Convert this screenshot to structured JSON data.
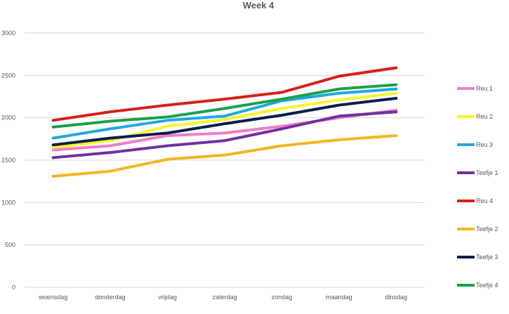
{
  "chart_data": {
    "type": "line",
    "title": "Week 4",
    "xlabel": "",
    "ylabel": "",
    "categories": [
      "woensdag",
      "donderdag",
      "vrijdag",
      "zaterdag",
      "zondag",
      "maandag",
      "dinsdag"
    ],
    "yticks": [
      "0",
      "500",
      "1000",
      "1500",
      "2000",
      "2500",
      "3000"
    ],
    "ylim": [
      0,
      3000
    ],
    "grid": true,
    "legend_position": "right",
    "series": [
      {
        "name": "Reu 1",
        "color": "#ee7ec8",
        "values": [
          1620,
          1670,
          1790,
          1820,
          1900,
          2000,
          2090
        ]
      },
      {
        "name": "Reu 2",
        "color": "#f7f52a",
        "values": [
          1650,
          1730,
          1900,
          1980,
          2110,
          2210,
          2290
        ]
      },
      {
        "name": "Reu 3",
        "color": "#1fa9e0",
        "values": [
          1760,
          1870,
          1970,
          2020,
          2200,
          2290,
          2340
        ]
      },
      {
        "name": "Teefje 1",
        "color": "#7030a0",
        "values": [
          1530,
          1590,
          1670,
          1730,
          1870,
          2020,
          2070
        ]
      },
      {
        "name": "Reu 4",
        "color": "#d91e18",
        "values": [
          1970,
          2070,
          2150,
          2220,
          2300,
          2490,
          2590
        ]
      },
      {
        "name": "Teefje 2",
        "color": "#f2b71f",
        "values": [
          1310,
          1370,
          1510,
          1560,
          1670,
          1740,
          1790
        ]
      },
      {
        "name": "Teefje 3",
        "color": "#0b1d4a",
        "values": [
          1680,
          1760,
          1820,
          1930,
          2030,
          2150,
          2230
        ]
      },
      {
        "name": "Teefje 4",
        "color": "#1aa14a",
        "values": [
          1890,
          1960,
          2010,
          2110,
          2220,
          2340,
          2390
        ]
      }
    ]
  }
}
